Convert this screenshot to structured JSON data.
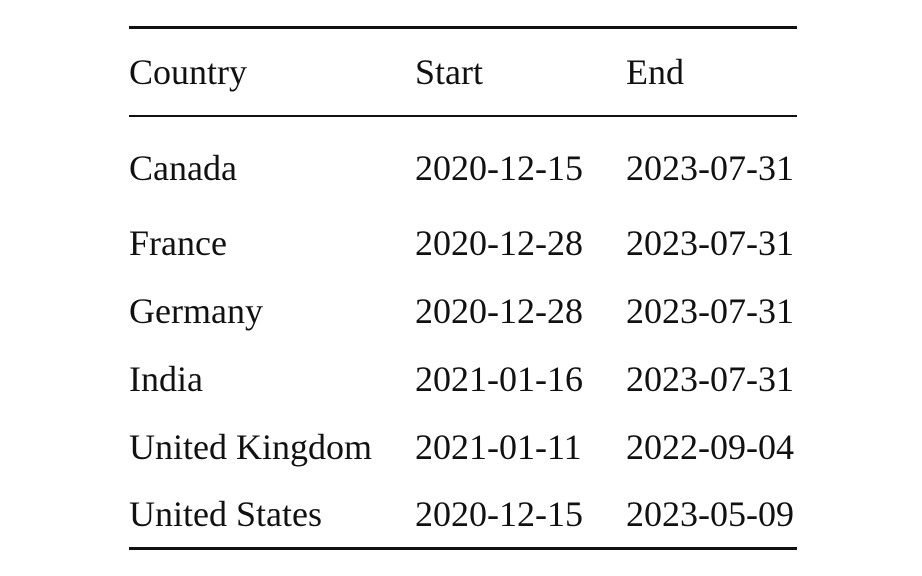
{
  "table": {
    "headers": [
      "Country",
      "Start",
      "End"
    ],
    "rows": [
      [
        "Canada",
        "2020-12-15",
        "2023-07-31"
      ],
      [
        "France",
        "2020-12-28",
        "2023-07-31"
      ],
      [
        "Germany",
        "2020-12-28",
        "2023-07-31"
      ],
      [
        "India",
        "2021-01-16",
        "2023-07-31"
      ],
      [
        "United Kingdom",
        "2021-01-11",
        "2022-09-04"
      ],
      [
        "United States",
        "2020-12-15",
        "2023-05-09"
      ]
    ]
  }
}
